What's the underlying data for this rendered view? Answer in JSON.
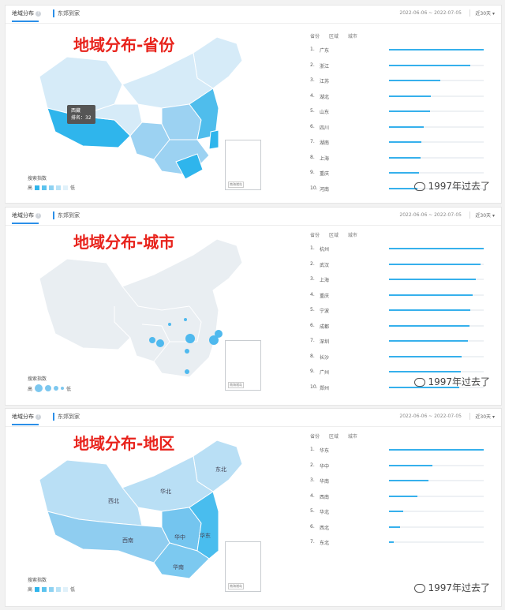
{
  "panels": [
    {
      "tab_active": "地域分布",
      "tab_other": "东郊到家",
      "date_range": "2022-06-06 ~ 2022-07-05",
      "period": "近30天",
      "heading": "地域分布-省份",
      "rank_headers": [
        "省份",
        "区域",
        "城市"
      ],
      "tooltip": {
        "name": "西藏",
        "rank": "排名：32"
      },
      "legend": {
        "title": "搜索指数",
        "high": "高",
        "low": "低"
      },
      "rows": [
        {
          "num": "1.",
          "name": "广东",
          "value": 1.0
        },
        {
          "num": "2.",
          "name": "浙江",
          "value": 0.86
        },
        {
          "num": "3.",
          "name": "江苏",
          "value": 0.54
        },
        {
          "num": "4.",
          "name": "湖北",
          "value": 0.44
        },
        {
          "num": "5.",
          "name": "山东",
          "value": 0.43
        },
        {
          "num": "6.",
          "name": "四川",
          "value": 0.37
        },
        {
          "num": "7.",
          "name": "湖南",
          "value": 0.34
        },
        {
          "num": "8.",
          "name": "上海",
          "value": 0.33
        },
        {
          "num": "9.",
          "name": "重庆",
          "value": 0.32
        },
        {
          "num": "10.",
          "name": "河南",
          "value": 0.3
        }
      ],
      "inset_caption": "南海诸岛",
      "watermark": "1997年过去了",
      "colors": {
        "bar": "#36b0ec",
        "map_light": "#d6ebf8",
        "map_mid": "#9cd2f2",
        "map_dark": "#2fb5ec"
      }
    },
    {
      "tab_active": "地域分布",
      "tab_other": "东郊到家",
      "date_range": "2022-06-06 ~ 2022-07-05",
      "period": "近30天",
      "heading": "地域分布-城市",
      "rank_headers": [
        "省份",
        "区域",
        "城市"
      ],
      "legend": {
        "title": "搜索指数",
        "high": "高",
        "low": "低"
      },
      "rows": [
        {
          "num": "1.",
          "name": "杭州",
          "value": 1.0
        },
        {
          "num": "2.",
          "name": "武汉",
          "value": 0.97
        },
        {
          "num": "3.",
          "name": "上海",
          "value": 0.92
        },
        {
          "num": "4.",
          "name": "重庆",
          "value": 0.88
        },
        {
          "num": "5.",
          "name": "宁波",
          "value": 0.86
        },
        {
          "num": "6.",
          "name": "成都",
          "value": 0.85
        },
        {
          "num": "7.",
          "name": "深圳",
          "value": 0.83
        },
        {
          "num": "8.",
          "name": "长沙",
          "value": 0.77
        },
        {
          "num": "9.",
          "name": "广州",
          "value": 0.76
        },
        {
          "num": "10.",
          "name": "郑州",
          "value": 0.74
        }
      ],
      "inset_caption": "南海诸岛",
      "watermark": "1997年过去了",
      "colors": {
        "bar": "#36b0ec",
        "map_light": "#e9eef2",
        "dot": "#4fb9ee"
      }
    },
    {
      "tab_active": "地域分布",
      "tab_other": "东郊到家",
      "date_range": "2022-06-06 ~ 2022-07-05",
      "period": "近30天",
      "heading": "地域分布-地区",
      "rank_headers": [
        "省份",
        "区域",
        "城市"
      ],
      "legend": {
        "title": "搜索指数",
        "high": "高",
        "low": "低"
      },
      "region_labels": [
        "东北",
        "华北",
        "西北",
        "西南",
        "华中",
        "华东",
        "华南"
      ],
      "rows": [
        {
          "num": "1.",
          "name": "华东",
          "value": 1.0
        },
        {
          "num": "2.",
          "name": "华中",
          "value": 0.46
        },
        {
          "num": "3.",
          "name": "华南",
          "value": 0.42
        },
        {
          "num": "4.",
          "name": "西南",
          "value": 0.3
        },
        {
          "num": "5.",
          "name": "华北",
          "value": 0.15
        },
        {
          "num": "6.",
          "name": "西北",
          "value": 0.12
        },
        {
          "num": "7.",
          "name": "东北",
          "value": 0.05
        }
      ],
      "inset_caption": "南海诸岛",
      "watermark": "1997年过去了",
      "colors": {
        "bar": "#36b0ec",
        "map_light": "#b9dff5",
        "map_mid": "#8fcdf0",
        "map_dark": "#49bdee"
      }
    }
  ]
}
